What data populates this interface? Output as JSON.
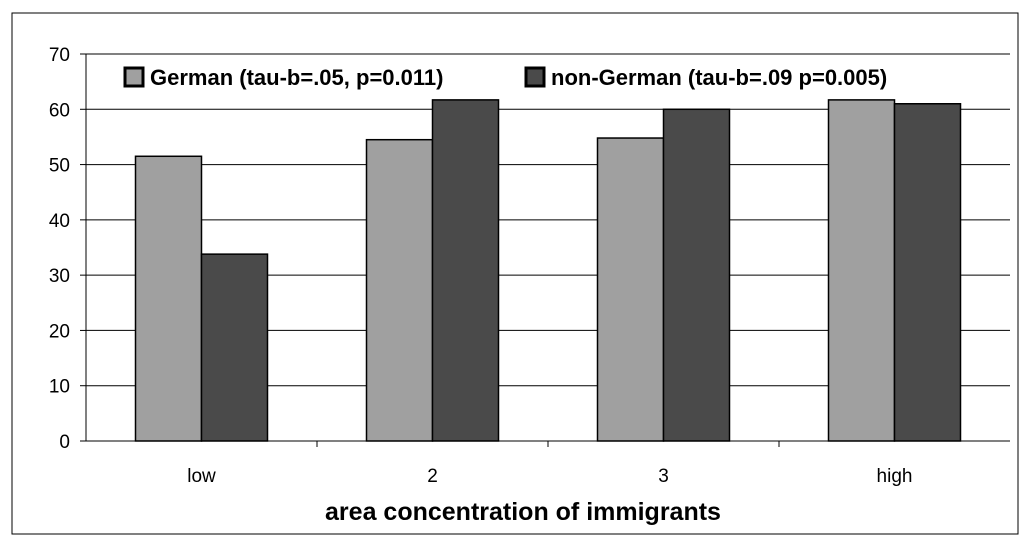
{
  "chart_data": {
    "type": "bar",
    "title": "",
    "xlabel": "area concentration of immigrants",
    "ylabel": "",
    "ylim": [
      0,
      70
    ],
    "yticks": [
      0,
      10,
      20,
      30,
      40,
      50,
      60,
      70
    ],
    "grid": true,
    "legend_position": "top",
    "categories": [
      "low",
      "2",
      "3",
      "high"
    ],
    "series": [
      {
        "name": "German (tau-b=.05, p=0.011)",
        "color": "#a0a0a0",
        "values": [
          51.5,
          54.5,
          54.8,
          61.7
        ]
      },
      {
        "name": "non-German (tau-b=.09 p=0.005)",
        "color": "#4a4a4a",
        "values": [
          33.8,
          61.7,
          60.0,
          61.0
        ]
      }
    ]
  }
}
